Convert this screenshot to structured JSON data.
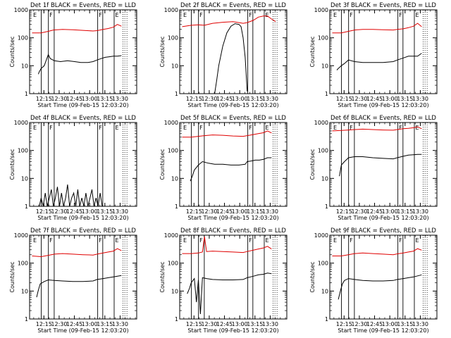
{
  "chart_data": {
    "type": "line",
    "common": {
      "yscale": "log",
      "ylim": [
        1,
        1000
      ],
      "xlim_minutes_after_12_03_20": [
        -2.4,
        103
      ],
      "x_tick_labels": [
        "12:15",
        "12:30",
        "12:45",
        "13:00",
        "13:15",
        "13:30"
      ],
      "x_tick_positions_minutes": [
        11.67,
        26.67,
        41.67,
        56.67,
        71.67,
        86.67
      ],
      "y_tick_labels": [
        "1",
        "10",
        "100",
        "1000"
      ],
      "ylabel": "Counts/sec",
      "xlabel": "Start Time (09-Feb-15 12:03:20)",
      "series_colors": {
        "Events": "#000000",
        "LLD": "#e00000"
      },
      "marker_letters": [
        "E",
        "F"
      ]
    },
    "panels": [
      {
        "title": "Det 1f BLACK = Events, RED = LLD",
        "vlines": [
          9.1,
          16.1,
          21.8,
          64.6,
          69.6,
          80.8
        ],
        "dotted": [
          89.5,
          91.3,
          93.4
        ],
        "labels": [
          {
            "t": "E",
            "at": 0
          },
          {
            "t": "F",
            "at": 16.1
          },
          {
            "t": "F",
            "at": 64.6
          },
          {
            "t": "E",
            "at": 80.8
          }
        ],
        "series": [
          {
            "name": "LLD",
            "color": "#e00000",
            "x": [
              0,
              9,
              16,
              21,
              30,
              40,
              50,
              60,
              64,
              70,
              75,
              80,
              84,
              88
            ],
            "y": [
              150,
              150,
              170,
              190,
              200,
              195,
              185,
              175,
              180,
              200,
              215,
              240,
              300,
              260
            ]
          },
          {
            "name": "Events",
            "color": "#000000",
            "x": [
              6.3,
              7,
              9,
              12,
              16,
              18,
              22,
              28,
              35,
              42,
              48,
              55,
              60,
              64,
              68,
              72,
              76,
              80,
              84,
              88
            ],
            "y": [
              5,
              6,
              8,
              10,
              25,
              18,
              15,
              14,
              15,
              14,
              13,
              13,
              14,
              16,
              18,
              20,
              21,
              22,
              22,
              23
            ]
          }
        ]
      },
      {
        "title": "Det 2f BLACK = Events, RED = LLD",
        "vlines": [
          9.1,
          16.1,
          21.8,
          64.6,
          69.6,
          80.8
        ],
        "dotted": [
          89.5,
          91.3,
          93.4
        ],
        "labels": [
          {
            "t": "E",
            "at": 0
          },
          {
            "t": "F",
            "at": 16.1
          },
          {
            "t": "F",
            "at": 64.6
          },
          {
            "t": "E",
            "at": 80.8
          }
        ],
        "series": [
          {
            "name": "LLD",
            "color": "#e00000",
            "x": [
              0,
              9,
              16,
              22,
              30,
              40,
              50,
              56,
              60,
              64,
              70,
              75,
              80,
              84,
              88,
              92
            ],
            "y": [
              250,
              280,
              290,
              280,
              330,
              360,
              380,
              350,
              330,
              350,
              420,
              550,
              600,
              600,
              470,
              380
            ]
          },
          {
            "name": "Events",
            "color": "#000000",
            "x": [
              32,
              34,
              36,
              40,
              44,
              48,
              52,
              56,
              58,
              60,
              62,
              64
            ],
            "y": [
              1,
              3,
              10,
              50,
              150,
              260,
              320,
              300,
              250,
              100,
              20,
              1.2
            ]
          }
        ]
      },
      {
        "title": "Det 3f BLACK = Events, RED = LLD",
        "vlines": [
          9.1,
          16.1,
          21.8,
          64.6,
          69.6,
          80.8
        ],
        "dotted": [
          89.5,
          91.3,
          93.4
        ],
        "labels": [
          {
            "t": "E",
            "at": 0
          },
          {
            "t": "F",
            "at": 16.1
          },
          {
            "t": "F",
            "at": 64.6
          },
          {
            "t": "E",
            "at": 80.8
          }
        ],
        "series": [
          {
            "name": "LLD",
            "color": "#e00000",
            "x": [
              0,
              9,
              16,
              22,
              30,
              40,
              50,
              60,
              64,
              70,
              75,
              80,
              84,
              88
            ],
            "y": [
              150,
              150,
              170,
              190,
              200,
              200,
              195,
              190,
              200,
              210,
              230,
              260,
              330,
              250
            ]
          },
          {
            "name": "Events",
            "color": "#000000",
            "x": [
              4.5,
              6,
              9,
              12,
              16,
              22,
              30,
              40,
              50,
              60,
              64,
              70,
              75,
              80,
              84,
              88
            ],
            "y": [
              7,
              8,
              10,
              12,
              16,
              14,
              13,
              13,
              13,
              14,
              16,
              19,
              22,
              22,
              22,
              28
            ]
          }
        ]
      },
      {
        "title": "Det 4f BLACK = Events, RED = LLD",
        "vlines": [
          9.1,
          16.1,
          21.8,
          64.6,
          69.6,
          80.8
        ],
        "dotted": [
          89.5,
          91.3,
          93.4
        ],
        "labels": [
          {
            "t": "E",
            "at": 0
          },
          {
            "t": "F",
            "at": 16.1
          },
          {
            "t": "F",
            "at": 64.6
          },
          {
            "t": "E",
            "at": 80.8
          }
        ],
        "series": [
          {
            "name": "Events",
            "color": "#000000",
            "x": [
              7,
              9,
              11,
              13,
              15,
              17,
              19,
              21,
              23,
              25,
              27,
              29,
              31,
              33,
              35,
              37,
              39,
              41,
              43,
              45,
              47,
              49,
              51,
              53,
              55,
              57,
              59,
              61,
              63,
              65,
              67,
              69,
              71
            ],
            "y": [
              1,
              2,
              1,
              3,
              1,
              2,
              4,
              1,
              2,
              5,
              1,
              3,
              1,
              2,
              6,
              1,
              2,
              3,
              1,
              4,
              1,
              2,
              1,
              3,
              1,
              2,
              4,
              1,
              2,
              1,
              3,
              1,
              1
            ]
          }
        ]
      },
      {
        "title": "Det 5f BLACK = Events, RED = LLD",
        "vlines": [
          9.1,
          16.1,
          21.8,
          64.6,
          69.6,
          80.8
        ],
        "dotted": [
          89.5,
          91.3,
          93.4
        ],
        "labels": [
          {
            "t": "E",
            "at": 0
          },
          {
            "t": "F",
            "at": 16.1
          },
          {
            "t": "F",
            "at": 64.6
          },
          {
            "t": "E",
            "at": 80.8
          }
        ],
        "series": [
          {
            "name": "LLD",
            "color": "#e00000",
            "x": [
              0,
              9,
              16,
              22,
              30,
              40,
              50,
              60,
              64,
              70,
              75,
              80,
              84,
              88
            ],
            "y": [
              300,
              300,
              320,
              340,
              360,
              350,
              330,
              320,
              340,
              370,
              400,
              430,
              500,
              420
            ]
          },
          {
            "name": "Events",
            "color": "#000000",
            "x": [
              8,
              10,
              12,
              16,
              20,
              26,
              32,
              40,
              48,
              56,
              62,
              64,
              68,
              72,
              76,
              80,
              84,
              88
            ],
            "y": [
              8,
              12,
              20,
              30,
              40,
              35,
              32,
              32,
              30,
              30,
              32,
              40,
              42,
              45,
              45,
              48,
              55,
              55
            ]
          }
        ]
      },
      {
        "title": "Det 6f BLACK = Events, RED = LLD",
        "vlines": [
          9.1,
          16.1,
          21.8,
          64.6,
          69.6,
          80.8
        ],
        "dotted": [
          89.5,
          91.3,
          93.4
        ],
        "labels": [
          {
            "t": "E",
            "at": 0
          },
          {
            "t": "F",
            "at": 16.1
          },
          {
            "t": "F",
            "at": 64.6
          },
          {
            "t": "E",
            "at": 80.8
          }
        ],
        "series": [
          {
            "name": "LLD",
            "color": "#e00000",
            "x": [
              0,
              9,
              16,
              22,
              30,
              40,
              50,
              60,
              64,
              70,
              75,
              80,
              84,
              88
            ],
            "y": [
              500,
              520,
              540,
              560,
              580,
              560,
              540,
              530,
              560,
              600,
              620,
              650,
              700,
              600
            ]
          },
          {
            "name": "Events",
            "color": "#000000",
            "x": [
              7,
              9,
              12,
              16,
              22,
              30,
              40,
              50,
              60,
              64,
              70,
              75,
              80,
              84,
              88
            ],
            "y": [
              12,
              30,
              40,
              55,
              60,
              60,
              55,
              52,
              50,
              55,
              62,
              68,
              70,
              72,
              72
            ]
          }
        ]
      },
      {
        "title": "Det 7f BLACK = Events, RED = LLD",
        "vlines": [
          9.1,
          16.1,
          21.8,
          64.6,
          69.6,
          80.8
        ],
        "dotted": [
          89.5,
          91.3,
          93.4
        ],
        "labels": [
          {
            "t": "E",
            "at": 0
          },
          {
            "t": "F",
            "at": 16.1
          },
          {
            "t": "F",
            "at": 64.6
          },
          {
            "t": "E",
            "at": 80.8
          }
        ],
        "series": [
          {
            "name": "LLD",
            "color": "#e00000",
            "x": [
              0,
              9,
              16,
              22,
              30,
              40,
              50,
              60,
              64,
              70,
              75,
              80,
              84,
              88
            ],
            "y": [
              180,
              170,
              190,
              210,
              220,
              210,
              200,
              195,
              210,
              230,
              250,
              270,
              330,
              280
            ]
          },
          {
            "name": "Events",
            "color": "#000000",
            "x": [
              4.5,
              6,
              8,
              12,
              16,
              22,
              30,
              40,
              50,
              60,
              64,
              70,
              75,
              80,
              84,
              88
            ],
            "y": [
              6,
              10,
              18,
              22,
              25,
              24,
              23,
              22,
              22,
              23,
              26,
              28,
              30,
              32,
              34,
              36
            ]
          }
        ]
      },
      {
        "title": "Det 8f BLACK = Events, RED = LLD",
        "vlines": [
          9.1,
          16.1,
          21.8,
          64.6,
          69.6,
          80.8
        ],
        "dotted": [
          89.5,
          91.3,
          93.4
        ],
        "labels": [
          {
            "t": "E",
            "at": 0
          },
          {
            "t": "F",
            "at": 16.1
          },
          {
            "t": "F",
            "at": 64.6
          },
          {
            "t": "E",
            "at": 80.8
          }
        ],
        "series": [
          {
            "name": "LLD",
            "color": "#e00000",
            "x": [
              0,
              9,
              16,
              20,
              22,
              24,
              30,
              40,
              50,
              60,
              64,
              70,
              75,
              80,
              84,
              88
            ],
            "y": [
              220,
              220,
              230,
              250,
              900,
              260,
              270,
              260,
              250,
              240,
              260,
              290,
              320,
              350,
              400,
              320
            ]
          },
          {
            "name": "Events",
            "color": "#000000",
            "x": [
              5,
              7,
              9,
              12,
              14,
              16,
              18,
              20,
              24,
              30,
              40,
              50,
              60,
              64,
              70,
              75,
              80,
              84,
              88
            ],
            "y": [
              8,
              12,
              20,
              28,
              4,
              25,
              1.5,
              30,
              28,
              26,
              25,
              25,
              26,
              30,
              34,
              38,
              40,
              44,
              42
            ]
          }
        ]
      },
      {
        "title": "Det 9f BLACK = Events, RED = LLD",
        "vlines": [
          9.1,
          16.1,
          21.8,
          64.6,
          69.6,
          80.8
        ],
        "dotted": [
          89.5,
          91.3,
          93.4
        ],
        "labels": [
          {
            "t": "E",
            "at": 0
          },
          {
            "t": "F",
            "at": 16.1
          },
          {
            "t": "F",
            "at": 64.6
          },
          {
            "t": "E",
            "at": 80.8
          }
        ],
        "series": [
          {
            "name": "LLD",
            "color": "#e00000",
            "x": [
              0,
              9,
              16,
              22,
              30,
              40,
              50,
              60,
              64,
              70,
              75,
              80,
              84,
              88
            ],
            "y": [
              180,
              180,
              200,
              220,
              230,
              220,
              210,
              200,
              215,
              230,
              250,
              270,
              330,
              290
            ]
          },
          {
            "name": "Events",
            "color": "#000000",
            "x": [
              6,
              8,
              10,
              12,
              16,
              22,
              30,
              40,
              50,
              60,
              64,
              70,
              75,
              80,
              84,
              88
            ],
            "y": [
              5,
              10,
              18,
              24,
              28,
              26,
              24,
              23,
              23,
              24,
              26,
              28,
              30,
              32,
              35,
              38
            ]
          }
        ]
      }
    ]
  }
}
